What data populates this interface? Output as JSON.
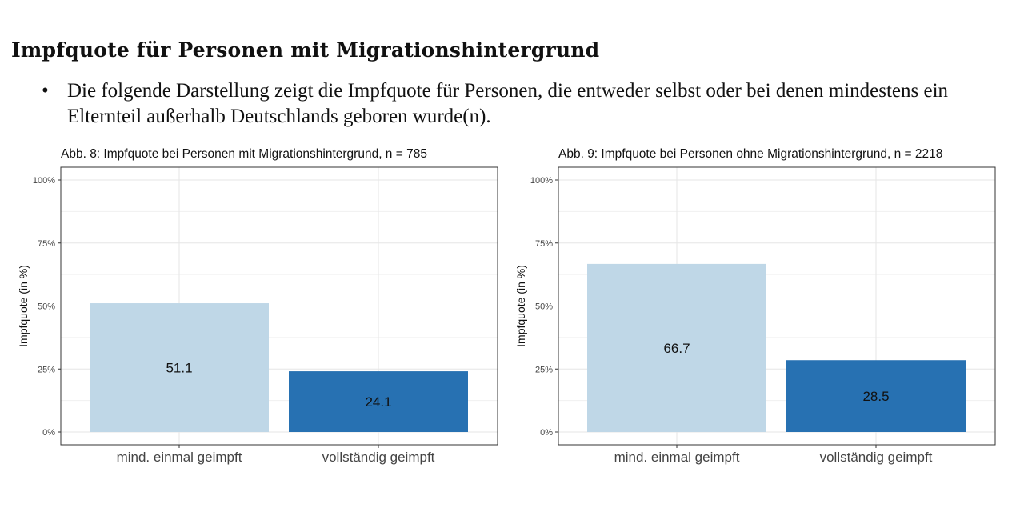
{
  "heading": "Impfquote für Personen mit Migrationshintergrund",
  "bullet": {
    "symbol": "•",
    "text": "Die folgende Darstellung zeigt die Impfquote für Personen, die entweder selbst oder bei denen mindestens ein Elternteil außerhalb Deutschlands geboren wurde(n)."
  },
  "chart_data": [
    {
      "type": "bar",
      "title": "Abb. 8: Impfquote bei Personen mit Migrationshintergrund, n = 785",
      "xlabel": "",
      "ylabel": "Impfquote (in %)",
      "ylim": [
        0,
        100
      ],
      "yticks": [
        "0%",
        "25%",
        "50%",
        "75%",
        "100%"
      ],
      "categories": [
        "mind. einmal geimpft",
        "vollständig geimpft"
      ],
      "values": [
        51.1,
        24.1
      ],
      "value_labels": [
        "51.1",
        "24.1"
      ],
      "colors": [
        "#bfd7e7",
        "#2771b2"
      ],
      "grid": true
    },
    {
      "type": "bar",
      "title": "Abb. 9: Impfquote bei Personen ohne Migrationshintergrund, n = 2218",
      "xlabel": "",
      "ylabel": "Impfquote (in %)",
      "ylim": [
        0,
        100
      ],
      "yticks": [
        "0%",
        "25%",
        "50%",
        "75%",
        "100%"
      ],
      "categories": [
        "mind. einmal geimpft",
        "vollständig geimpft"
      ],
      "values": [
        66.7,
        28.5
      ],
      "value_labels": [
        "66.7",
        "28.5"
      ],
      "colors": [
        "#bfd7e7",
        "#2771b2"
      ],
      "grid": true
    }
  ]
}
